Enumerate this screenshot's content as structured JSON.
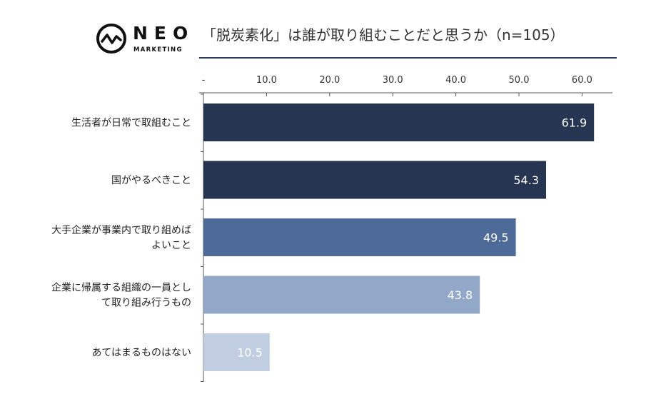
{
  "logo": {
    "wordmark": "NEO",
    "subtext": "MARKETING"
  },
  "title": "「脱炭素化」は誰が取り組むことだと思うか（n=105）",
  "colors": {
    "bar_dark": "#263552",
    "bar_mid": "#4d6a98",
    "bar_light": "#92a8c8",
    "bar_pale": "#c1cde0",
    "rule": "#2b3a5c",
    "axis": "#555555"
  },
  "chart_data": {
    "type": "bar",
    "orientation": "horizontal",
    "title": "「脱炭素化」は誰が取り組むことだと思うか（n=105）",
    "categories": [
      [
        "生活者が日常で取組むこと"
      ],
      [
        "国がやるべきこと"
      ],
      [
        "大手企業が事業内で取り組めば",
        "よいこと"
      ],
      [
        "企業に帰属する組織の一員とし",
        "て取り組み行うもの"
      ],
      [
        "あてはまるものはない"
      ]
    ],
    "values": [
      61.9,
      54.3,
      49.5,
      43.8,
      10.5
    ],
    "value_labels": [
      "61.9",
      "54.3",
      "49.5",
      "43.8",
      "10.5"
    ],
    "bar_colors": [
      "#263552",
      "#263552",
      "#4d6a98",
      "#92a8c8",
      "#c1cde0"
    ],
    "xlim": [
      0,
      65
    ],
    "x_ticks": [
      0,
      10,
      20,
      30,
      40,
      50,
      60
    ],
    "x_tick_labels": [
      "-",
      "10.0",
      "20.0",
      "30.0",
      "40.0",
      "50.0",
      "60.0"
    ],
    "axis_position": "top",
    "grid": false
  }
}
